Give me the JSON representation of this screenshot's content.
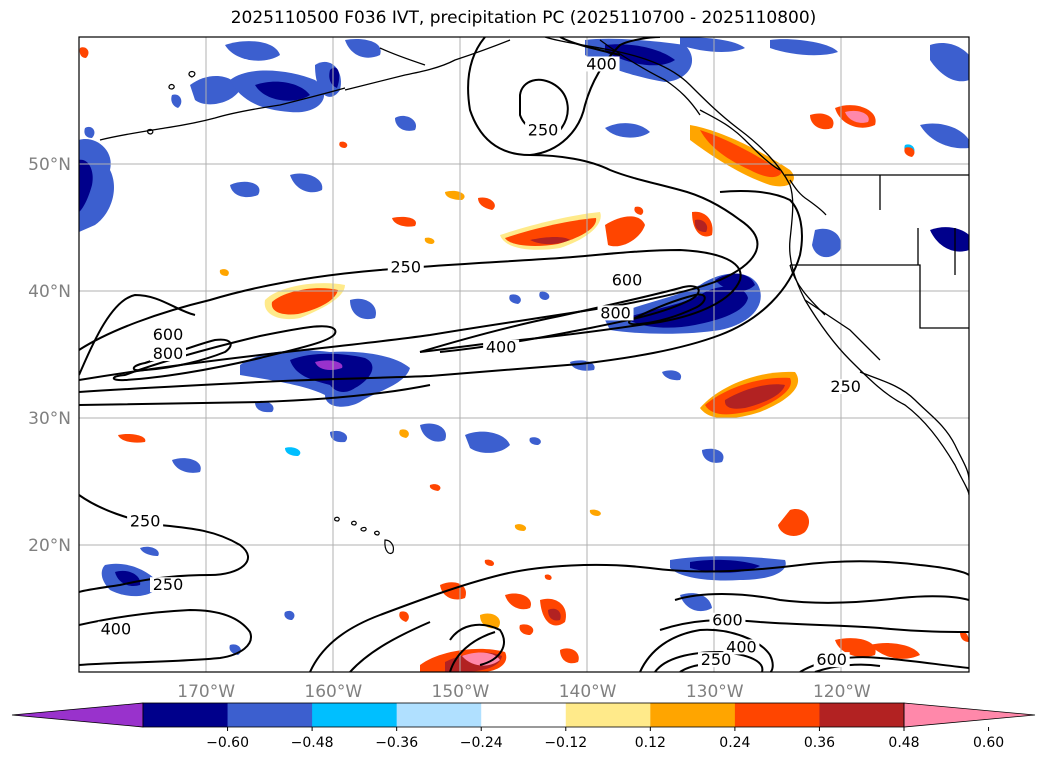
{
  "title": "2025110500 F036 IVT, precipitation PC (2025110700 - 2025110800)",
  "map": {
    "lon_range": [
      -180,
      -110
    ],
    "lat_range": [
      10,
      60
    ],
    "lat_ticks": [
      {
        "value": 20,
        "label": "20°N"
      },
      {
        "value": 30,
        "label": "30°N"
      },
      {
        "value": 40,
        "label": "40°N"
      },
      {
        "value": 50,
        "label": "50°N"
      }
    ],
    "lon_ticks": [
      {
        "value": -170,
        "label": "170°W"
      },
      {
        "value": -160,
        "label": "160°W"
      },
      {
        "value": -150,
        "label": "150°W"
      },
      {
        "value": -140,
        "label": "140°W"
      },
      {
        "value": -130,
        "label": "130°W"
      },
      {
        "value": -120,
        "label": "120°W"
      }
    ],
    "gridlines": true,
    "ivt_contour_levels": [
      250,
      400,
      600,
      800
    ],
    "contour_labels": [
      {
        "text": "400",
        "lon": -138.9,
        "lat": 57.6
      },
      {
        "text": "250",
        "lon": -143.5,
        "lat": 52.4
      },
      {
        "text": "250",
        "lon": -154.3,
        "lat": 41.6
      },
      {
        "text": "600",
        "lon": -136.9,
        "lat": 40.6
      },
      {
        "text": "400",
        "lon": -146.8,
        "lat": 35.3
      },
      {
        "text": "800",
        "lon": -137.8,
        "lat": 38.0
      },
      {
        "text": "600",
        "lon": -173.0,
        "lat": 36.3
      },
      {
        "text": "800",
        "lon": -173.0,
        "lat": 34.8
      },
      {
        "text": "250",
        "lon": -119.7,
        "lat": 32.2
      },
      {
        "text": "250",
        "lon": -174.8,
        "lat": 21.6
      },
      {
        "text": "250",
        "lon": -173.0,
        "lat": 16.6
      },
      {
        "text": "400",
        "lon": -177.1,
        "lat": 13.1
      },
      {
        "text": "600",
        "lon": -129.0,
        "lat": 13.8
      },
      {
        "text": "400",
        "lon": -127.9,
        "lat": 11.7
      },
      {
        "text": "250",
        "lon": -129.9,
        "lat": 10.7
      },
      {
        "text": "600",
        "lon": -120.8,
        "lat": 10.7
      }
    ]
  },
  "colorbar": {
    "colors": [
      "#9932cc",
      "#00008b",
      "#3c5fcf",
      "#00bfff",
      "#b0e0ff",
      "#ffffff",
      "#ffea8a",
      "#ffa500",
      "#ff4500",
      "#b22222",
      "#ff88aa"
    ],
    "ticks": [
      "−0.60",
      "−0.48",
      "−0.36",
      "−0.24",
      "−0.12",
      "0.12",
      "0.24",
      "0.36",
      "0.48",
      "0.60"
    ]
  }
}
